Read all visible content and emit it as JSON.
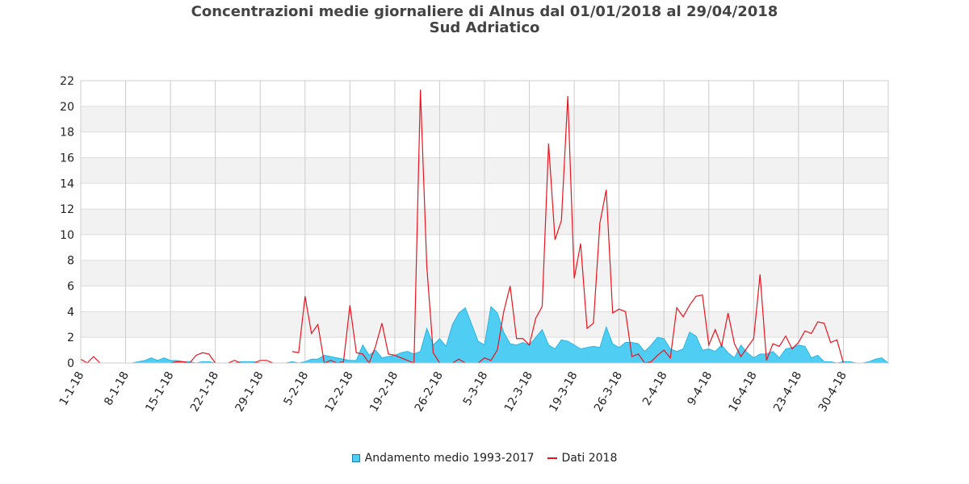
{
  "chart_data": {
    "type": "area",
    "title": "Concentrazioni medie giornaliere di Alnus dal 01/01/2018 al 29/04/2018",
    "subtitle": "Sud Adriatico",
    "ylim": [
      0,
      22
    ],
    "y_ticks": [
      0,
      2,
      4,
      6,
      8,
      10,
      12,
      14,
      16,
      18,
      20,
      22
    ],
    "x_ticks": [
      "1-1-18",
      "8-1-18",
      "15-1-18",
      "22-1-18",
      "29-1-18",
      "5-2-18",
      "12-2-18",
      "19-2-18",
      "26-2-18",
      "5-3-18",
      "12-3-18",
      "19-3-18",
      "26-3-18",
      "2-4-18",
      "9-4-18",
      "16-4-18",
      "23-4-18",
      "30-4-18"
    ],
    "x_start": "2018-01-01",
    "grid": true,
    "legend_position": "bottom",
    "series": [
      {
        "name": "Andamento medio 1993-2017",
        "kind": "area",
        "color": "#4fcdf2",
        "values": [
          0,
          0,
          0,
          0,
          0,
          0,
          0,
          0,
          0,
          0.1,
          0.2,
          0.4,
          0.2,
          0.4,
          0.2,
          0.2,
          0.1,
          0.1,
          0,
          0.1,
          0.1,
          0,
          0,
          0,
          0,
          0.1,
          0.1,
          0.1,
          0,
          0,
          0,
          0,
          0,
          0.1,
          0,
          0.1,
          0.3,
          0.3,
          0.6,
          0.5,
          0.4,
          0.3,
          0.2,
          0.2,
          1.4,
          0.6,
          1,
          0.4,
          0.5,
          0.6,
          0.8,
          0.9,
          0.7,
          0.9,
          2.7,
          1.4,
          1.9,
          1.3,
          3,
          3.9,
          4.3,
          3,
          1.7,
          1.4,
          4.4,
          3.9,
          2.4,
          1.5,
          1.4,
          1.6,
          1.4,
          2,
          2.6,
          1.4,
          1.1,
          1.8,
          1.7,
          1.4,
          1.1,
          1.2,
          1.3,
          1.2,
          2.8,
          1.5,
          1.2,
          1.6,
          1.6,
          1.5,
          0.9,
          1.4,
          2,
          1.9,
          1.1,
          0.9,
          1.1,
          2.4,
          2.1,
          1,
          1.1,
          0.9,
          1.4,
          0.8,
          0.4,
          1.4,
          0.8,
          0.4,
          0.7,
          0.7,
          0.9,
          0.4,
          1.1,
          1.2,
          1.4,
          1.3,
          0.4,
          0.6,
          0.1,
          0.1,
          0,
          0.1,
          0.1,
          0,
          0,
          0.1,
          0.3,
          0.4,
          0
        ]
      },
      {
        "name": "Dati 2018",
        "kind": "line",
        "color": "#e8141e",
        "values": [
          0.3,
          0,
          0.5,
          0,
          null,
          null,
          null,
          null,
          null,
          null,
          null,
          null,
          null,
          null,
          0,
          0.1,
          0.1,
          0,
          0.6,
          0.8,
          0.7,
          0,
          null,
          0,
          0.2,
          0,
          null,
          0,
          0.2,
          0.2,
          0,
          null,
          null,
          0.9,
          0.8,
          5.2,
          2.3,
          3,
          0,
          0.2,
          0,
          0.1,
          4.5,
          0.8,
          0.7,
          0,
          1.3,
          3.1,
          0.7,
          0.6,
          0.4,
          0.2,
          0,
          21.3,
          7.5,
          0.8,
          0,
          null,
          0,
          0.3,
          0,
          null,
          0,
          0.4,
          0.2,
          1,
          4,
          6,
          1.9,
          1.9,
          1.4,
          3.5,
          4.4,
          17.1,
          9.6,
          11.1,
          20.8,
          6.6,
          9.3,
          2.7,
          3.1,
          10.9,
          13.5,
          3.9,
          4.2,
          4,
          0.5,
          0.7,
          0,
          0.1,
          0.6,
          1,
          0.4,
          4.3,
          3.6,
          4.5,
          5.2,
          5.3,
          1.4,
          2.6,
          1.3,
          3.9,
          1.5,
          0.5,
          1.2,
          1.9,
          6.9,
          0.2,
          1.5,
          1.3,
          2.1,
          1.1,
          1.6,
          2.5,
          2.3,
          3.2,
          3.1,
          1.6,
          1.8,
          0
        ]
      }
    ]
  }
}
